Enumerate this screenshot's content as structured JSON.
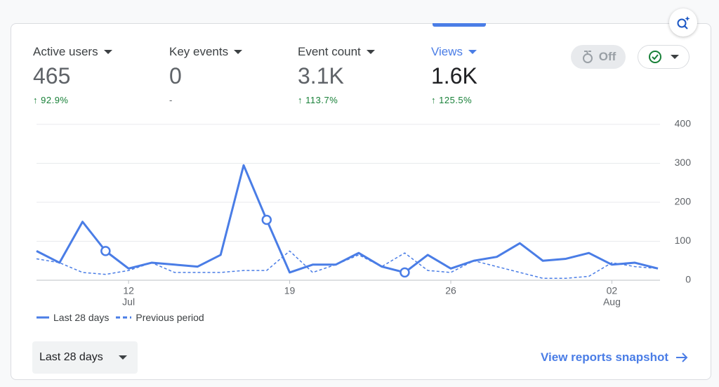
{
  "metrics": [
    {
      "label": "Active users",
      "value": "465",
      "change": "92.9%"
    },
    {
      "label": "Key events",
      "value": "0",
      "change": "-"
    },
    {
      "label": "Event count",
      "value": "3.1K",
      "change": "113.7%"
    },
    {
      "label": "Views",
      "value": "1.6K",
      "change": "125.5%"
    }
  ],
  "toggle": "Off",
  "date_range": "Last 28 days",
  "link": "View reports snapshot",
  "chart_data": {
    "type": "line",
    "categories": [
      null,
      null,
      null,
      null,
      "12",
      null,
      null,
      null,
      null,
      null,
      null,
      "19",
      null,
      null,
      null,
      null,
      null,
      null,
      "26",
      null,
      null,
      null,
      null,
      null,
      null,
      "02",
      null,
      null
    ],
    "category_sublabels": [
      null,
      null,
      null,
      null,
      "Jul",
      null,
      null,
      null,
      null,
      null,
      null,
      null,
      null,
      null,
      null,
      null,
      null,
      null,
      null,
      null,
      null,
      null,
      null,
      null,
      null,
      "Aug",
      null,
      null
    ],
    "series": [
      {
        "name": "Last 28 days",
        "color": "#4a7de6",
        "style": "solid",
        "values": [
          75,
          45,
          150,
          75,
          30,
          45,
          40,
          35,
          65,
          295,
          155,
          20,
          40,
          40,
          70,
          35,
          20,
          65,
          30,
          50,
          60,
          95,
          50,
          55,
          70,
          40,
          45,
          30
        ]
      },
      {
        "name": "Previous period",
        "color": "#4a7de6",
        "style": "dashed",
        "values": [
          55,
          45,
          20,
          15,
          25,
          45,
          20,
          20,
          20,
          25,
          25,
          75,
          20,
          40,
          65,
          35,
          70,
          25,
          20,
          50,
          35,
          20,
          5,
          5,
          10,
          45,
          35,
          30
        ]
      }
    ],
    "ylim": [
      0,
      400
    ],
    "yticks": [
      0,
      100,
      200,
      300,
      400
    ],
    "grid": true
  }
}
